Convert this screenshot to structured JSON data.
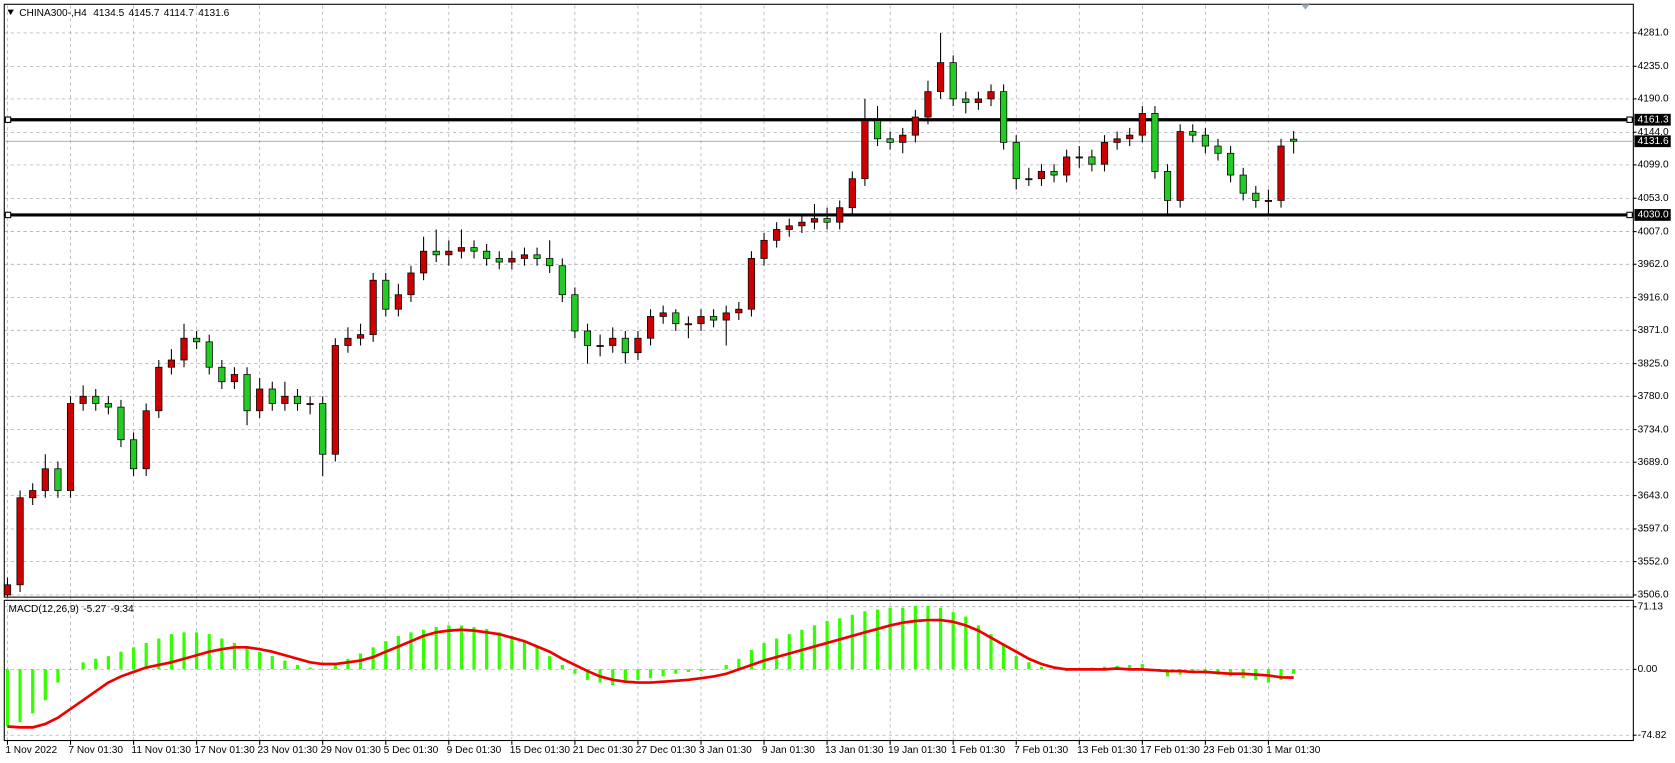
{
  "chart_data": [
    {
      "type": "candlestick",
      "symbol": "CHINA300-,H4",
      "up_color": "#cc0000",
      "down_color": "#22cc22",
      "categories": [
        "1 Nov 2022",
        null,
        null,
        null,
        null,
        "7 Nov 01:30",
        null,
        null,
        null,
        null,
        "11 Nov 01:30",
        null,
        null,
        null,
        null,
        "17 Nov 01:30",
        null,
        null,
        null,
        null,
        "23 Nov 01:30",
        null,
        null,
        null,
        null,
        "29 Nov 01:30",
        null,
        null,
        null,
        null,
        "5 Dec 01:30",
        null,
        null,
        null,
        null,
        "9 Dec 01:30",
        null,
        null,
        null,
        null,
        "15 Dec 01:30",
        null,
        null,
        null,
        null,
        "21 Dec 01:30",
        null,
        null,
        null,
        null,
        "27 Dec 01:30",
        null,
        null,
        null,
        null,
        "3 Jan 01:30",
        null,
        null,
        null,
        null,
        "9 Jan 01:30",
        null,
        null,
        null,
        null,
        "13 Jan 01:30",
        null,
        null,
        null,
        null,
        "19 Jan 01:30",
        null,
        null,
        null,
        null,
        "1 Feb 01:30",
        null,
        null,
        null,
        null,
        "7 Feb 01:30",
        null,
        null,
        null,
        null,
        "13 Feb 01:30",
        null,
        null,
        null,
        null,
        "17 Feb 01:30",
        null,
        null,
        null,
        null,
        "23 Feb 01:30",
        null,
        null,
        null,
        null,
        "1 Mar 01:30",
        null,
        null
      ],
      "open": [
        3506,
        3520,
        3640,
        3650,
        3680,
        3650,
        3770,
        3780,
        3770,
        3765,
        3720,
        3680,
        3760,
        3820,
        3830,
        3860,
        3855,
        3820,
        3800,
        3810,
        3760,
        3790,
        3770,
        3780,
        3770,
        3770,
        3700,
        3850,
        3860,
        3865,
        3940,
        3900,
        3920,
        3950,
        3980,
        3975,
        3980,
        3985,
        3980,
        3970,
        3965,
        3970,
        3975,
        3970,
        3960,
        3920,
        3870,
        3850,
        3850,
        3860,
        3840,
        3860,
        3890,
        3895,
        3880,
        3880,
        3890,
        3885,
        3895,
        3900,
        3970,
        3995,
        4010,
        4015,
        4020,
        4025,
        4020,
        4040,
        4080,
        4160,
        4135,
        4130,
        4140,
        4165,
        4200,
        4240,
        4190,
        4185,
        4190,
        4200,
        4130,
        4080,
        4080,
        4090,
        4085,
        4110,
        4110,
        4100,
        4130,
        4135,
        4140,
        4170,
        4090,
        4050,
        4145,
        4140,
        4125,
        4115,
        4085,
        4060,
        4050,
        4050,
        4134.5
      ],
      "high": [
        3530,
        3650,
        3660,
        3700,
        3690,
        3780,
        3795,
        3790,
        3780,
        3775,
        3730,
        3770,
        3830,
        3845,
        3880,
        3870,
        3865,
        3830,
        3820,
        3820,
        3805,
        3800,
        3800,
        3790,
        3780,
        3780,
        3860,
        3875,
        3880,
        3950,
        3950,
        3935,
        3960,
        4000,
        4010,
        3995,
        4010,
        3995,
        3990,
        3980,
        3980,
        3985,
        3985,
        3995,
        3970,
        3930,
        3880,
        3865,
        3875,
        3870,
        3870,
        3900,
        3905,
        3900,
        3890,
        3900,
        3900,
        3905,
        3910,
        3980,
        4005,
        4020,
        4025,
        4030,
        4045,
        4040,
        4050,
        4090,
        4190,
        4180,
        4145,
        4150,
        4175,
        4215,
        4281,
        4250,
        4200,
        4200,
        4210,
        4210,
        4140,
        4095,
        4100,
        4100,
        4120,
        4125,
        4120,
        4140,
        4145,
        4150,
        4180,
        4180,
        4100,
        4155,
        4155,
        4150,
        4135,
        4125,
        4095,
        4070,
        4065,
        4135,
        4145.7
      ],
      "low": [
        3504,
        3510,
        3630,
        3640,
        3640,
        3640,
        3760,
        3760,
        3755,
        3710,
        3670,
        3670,
        3750,
        3810,
        3820,
        3845,
        3810,
        3790,
        3790,
        3740,
        3750,
        3760,
        3760,
        3760,
        3755,
        3670,
        3690,
        3840,
        3850,
        3855,
        3890,
        3890,
        3910,
        3940,
        3965,
        3960,
        3970,
        3970,
        3960,
        3955,
        3955,
        3960,
        3960,
        3950,
        3910,
        3860,
        3825,
        3835,
        3840,
        3825,
        3830,
        3850,
        3880,
        3870,
        3860,
        3870,
        3875,
        3850,
        3885,
        3890,
        3960,
        3985,
        4000,
        4005,
        4010,
        4010,
        4010,
        4030,
        4070,
        4125,
        4120,
        4115,
        4130,
        4155,
        4190,
        4180,
        4170,
        4175,
        4180,
        4120,
        4065,
        4070,
        4070,
        4075,
        4075,
        4095,
        4090,
        4090,
        4120,
        4125,
        4130,
        4080,
        4030,
        4040,
        4130,
        4115,
        4105,
        4075,
        4050,
        4040,
        4030,
        4040,
        4114.7
      ],
      "close": [
        3520,
        3640,
        3650,
        3680,
        3650,
        3770,
        3780,
        3770,
        3765,
        3720,
        3680,
        3760,
        3820,
        3830,
        3860,
        3855,
        3820,
        3800,
        3810,
        3760,
        3790,
        3770,
        3780,
        3770,
        3770,
        3700,
        3850,
        3860,
        3865,
        3940,
        3900,
        3920,
        3950,
        3980,
        3975,
        3980,
        3985,
        3980,
        3970,
        3965,
        3970,
        3975,
        3970,
        3960,
        3920,
        3870,
        3850,
        3850,
        3860,
        3840,
        3860,
        3890,
        3895,
        3880,
        3880,
        3890,
        3885,
        3895,
        3900,
        3970,
        3995,
        4010,
        4015,
        4020,
        4025,
        4020,
        4040,
        4080,
        4160,
        4135,
        4130,
        4140,
        4165,
        4200,
        4240,
        4190,
        4185,
        4190,
        4200,
        4130,
        4080,
        4080,
        4090,
        4085,
        4110,
        4110,
        4100,
        4130,
        4135,
        4140,
        4170,
        4090,
        4050,
        4145,
        4140,
        4125,
        4115,
        4085,
        4060,
        4050,
        4050,
        4125,
        4131.6
      ],
      "ylim": [
        3503,
        4319
      ],
      "yticks": [
        {
          "value": 4281,
          "label": "4281.0"
        },
        {
          "value": 4235,
          "label": "4235.0"
        },
        {
          "value": 4190,
          "label": "4190.0"
        },
        {
          "value": 4144,
          "label": "4144.0"
        },
        {
          "value": 4099,
          "label": "4099.0"
        },
        {
          "value": 4053,
          "label": "4053.0"
        },
        {
          "value": 4007,
          "label": "4007.0"
        },
        {
          "value": 3962,
          "label": "3962.0"
        },
        {
          "value": 3916,
          "label": "3916.0"
        },
        {
          "value": 3871,
          "label": "3871.0"
        },
        {
          "value": 3825,
          "label": "3825.0"
        },
        {
          "value": 3780,
          "label": "3780.0"
        },
        {
          "value": 3734,
          "label": "3734.0"
        },
        {
          "value": 3689,
          "label": "3689.0"
        },
        {
          "value": 3643,
          "label": "3643.0"
        },
        {
          "value": 3597,
          "label": "3597.0"
        },
        {
          "value": 3552,
          "label": "3552.0"
        },
        {
          "value": 3506,
          "label": "3506.0"
        }
      ],
      "levels": [
        {
          "value": 4161.3,
          "label": "4161.3"
        },
        {
          "value": 4030.0,
          "label": "4030.0"
        }
      ],
      "bid": {
        "value": 4131.6,
        "label": "4131.6"
      },
      "grid": true
    },
    {
      "type": "macd",
      "title": "MACD(12,26,9)",
      "ylim": [
        -80.9,
        77.2
      ],
      "yticks": [
        {
          "value": 71.13,
          "label": "71.13"
        },
        {
          "value": 0,
          "label": "0.00"
        },
        {
          "value": -74.82,
          "label": "-74.82"
        }
      ],
      "series": [
        {
          "color": "#33ff00",
          "values": [
            -65,
            -60,
            -50,
            -35,
            -15,
            0,
            8,
            12,
            15,
            20,
            25,
            30,
            35,
            40,
            42,
            42,
            40,
            35,
            30,
            25,
            20,
            15,
            10,
            5,
            2,
            0,
            5,
            12,
            18,
            25,
            32,
            38,
            42,
            45,
            48,
            50,
            50,
            48,
            46,
            42,
            38,
            32,
            25,
            15,
            5,
            -5,
            -12,
            -15,
            -18,
            -15,
            -12,
            -10,
            -8,
            -5,
            -3,
            -2,
            0,
            5,
            12,
            22,
            30,
            35,
            40,
            45,
            50,
            55,
            58,
            62,
            66,
            68,
            70,
            70,
            72,
            72,
            70,
            65,
            60,
            50,
            40,
            28,
            15,
            8,
            3,
            0,
            -2,
            0,
            2,
            3,
            4,
            5,
            6,
            0,
            -8,
            -6,
            -4,
            -5,
            -6,
            -8,
            -10,
            -12,
            -15,
            -12,
            -5.27
          ]
        },
        {
          "color": "#ee0000",
          "values": [
            -65,
            -66,
            -66,
            -62,
            -55,
            -45,
            -35,
            -25,
            -15,
            -8,
            -3,
            2,
            5,
            8,
            12,
            16,
            20,
            23,
            25,
            25,
            23,
            20,
            16,
            12,
            8,
            6,
            6,
            8,
            10,
            14,
            20,
            26,
            32,
            38,
            42,
            44,
            45,
            44,
            42,
            40,
            36,
            32,
            26,
            20,
            12,
            5,
            -2,
            -8,
            -12,
            -14,
            -15,
            -15,
            -14,
            -13,
            -12,
            -10,
            -8,
            -5,
            0,
            5,
            10,
            14,
            18,
            22,
            26,
            30,
            34,
            38,
            42,
            46,
            50,
            53,
            55,
            56,
            56,
            54,
            50,
            44,
            36,
            28,
            20,
            12,
            6,
            2,
            0,
            0,
            0,
            0,
            1,
            0,
            0,
            -1,
            -2,
            -2,
            -3,
            -3,
            -4,
            -5,
            -5,
            -6,
            -7,
            -9,
            -9.34
          ]
        }
      ],
      "grid": true
    }
  ]
}
